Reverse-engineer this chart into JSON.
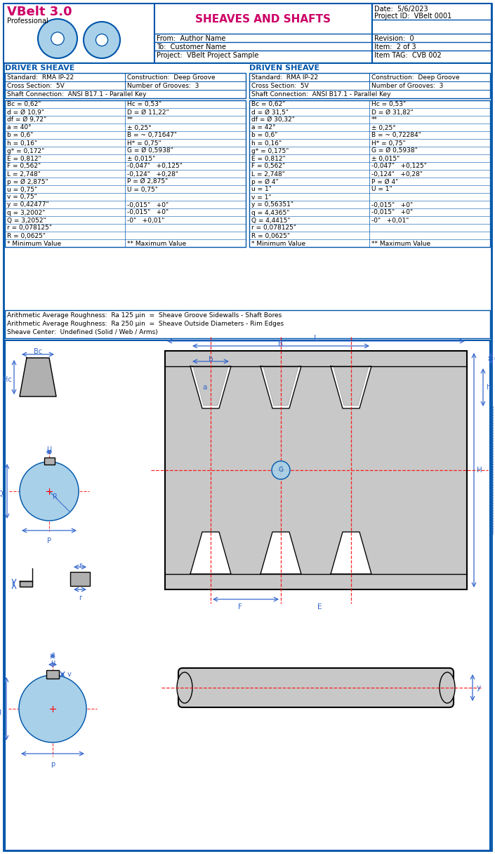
{
  "title": "SHEAVES AND SHAFTS",
  "header": {
    "software": "VBelt 3.0",
    "software_sub": "Professional",
    "date": "Date:  5/6/2023",
    "project_id": "Project ID:  VBelt 0001",
    "from": "From:  Author Name",
    "revision": "Revision:  0",
    "to": "To:  Customer Name",
    "item": "Item:  2 of 3",
    "project": "Project:  VBelt Project Sample",
    "item_tag": "Item TAG:  CVB 002"
  },
  "driver_label": "DRIVER SHEAVE",
  "driven_label": "DRIVEN SHEAVE",
  "driver_table": {
    "row1": [
      "Standard:  RMA IP-22",
      "Construction:  Deep Groove"
    ],
    "row2": [
      "Cross Section:  5V",
      "Number of Grooves:  3"
    ],
    "row3": [
      "Shaft Connection:  ANSI B17.1 - Parallel Key",
      ""
    ],
    "data_rows": [
      [
        "Bc = 0,62\"",
        "Hc = 0,53\""
      ],
      [
        "d = Ø 10,9\"",
        "D = Ø 11,22\""
      ],
      [
        "df = Ø 9,72\"",
        "**"
      ],
      [
        "a = 40°",
        "± 0,25°"
      ],
      [
        "b = 0,6\"",
        "B = ~ 0,71647\""
      ],
      [
        "h = 0,16\"",
        "H* = 0,75\""
      ],
      [
        "g* = 0,172\"",
        "G = Ø 0,5938\""
      ],
      [
        "E = 0,812\"",
        "± 0,015\""
      ],
      [
        "F = 0,562\"",
        "-0,047\"   +0,125\""
      ],
      [
        "L = 2,748\"",
        "-0,124\"   +0,28\""
      ],
      [
        "p = Ø 2,875\"",
        "P = Ø 2,875\""
      ],
      [
        "u = 0,75\"",
        "U = 0,75\""
      ],
      [
        "v = 0,75\"",
        ""
      ],
      [
        "y = 0,42477\"",
        "-0,015\"   +0\""
      ],
      [
        "q = 3,2002\"",
        "-0,015\"   +0\""
      ],
      [
        "Q = 3,2052\"",
        "-0\"   +0,01\""
      ],
      [
        "r = 0,078125\"",
        ""
      ],
      [
        "R = 0,0625\"",
        ""
      ],
      [
        "* Minimum Value",
        "** Maximum Value"
      ]
    ]
  },
  "driven_table": {
    "row1": [
      "Standard:  RMA IP-22",
      "Construction:  Deep Groove"
    ],
    "row2": [
      "Cross Section:  5V",
      "Number of Grooves:  3"
    ],
    "row3": [
      "Shaft Connection:  ANSI B17.1 - Parallel Key",
      ""
    ],
    "data_rows": [
      [
        "Bc = 0,62\"",
        "Hc = 0,53\""
      ],
      [
        "d = Ø 31,5\"",
        "D = Ø 31,82\""
      ],
      [
        "df = Ø 30,32\"",
        "**"
      ],
      [
        "a = 42°",
        "± 0,25°"
      ],
      [
        "b = 0,6\"",
        "B = ~ 0,72284\""
      ],
      [
        "h = 0,16\"",
        "H* = 0,75\""
      ],
      [
        "g* = 0,175\"",
        "G = Ø 0,5938\""
      ],
      [
        "E = 0,812\"",
        "± 0,015\""
      ],
      [
        "F = 0,562\"",
        "-0,047\"   +0,125\""
      ],
      [
        "L = 2,748\"",
        "-0,124\"   +0,28\""
      ],
      [
        "p = Ø 4\"",
        "P = Ø 4\""
      ],
      [
        "u = 1\"",
        "U = 1\""
      ],
      [
        "v = 1\"",
        ""
      ],
      [
        "y = 0,56351\"",
        "-0,015\"   +0\""
      ],
      [
        "q = 4,4365\"",
        "-0,015\"   +0\""
      ],
      [
        "Q = 4,4415\"",
        "-0\"   +0,01\""
      ],
      [
        "r = 0,078125\"",
        ""
      ],
      [
        "R = 0,0625\"",
        ""
      ],
      [
        "* Minimum Value",
        "** Maximum Value"
      ]
    ]
  },
  "notes": [
    "Arithmetic Average Roughness:  Ra 125 μin  =  Sheave Groove Sidewalls - Shaft Bores",
    "Arithmetic Average Roughness:  Ra 250 μin  =  Sheave Outside Diameters - Rim Edges",
    "Sheave Center:  Undefined (Solid / Web / Arms)"
  ],
  "colors": {
    "blue": "#0055AA",
    "magenta": "#CC0066",
    "light_blue": "#66AADD",
    "light_gray": "#D0D0D0",
    "medium_gray": "#B0B0B0",
    "red_dashed": "#FF0000",
    "dim_line": "#3366CC",
    "sheave_fill": "#A8D0E8",
    "sheave_groove_fill": "#C8C8C8"
  }
}
